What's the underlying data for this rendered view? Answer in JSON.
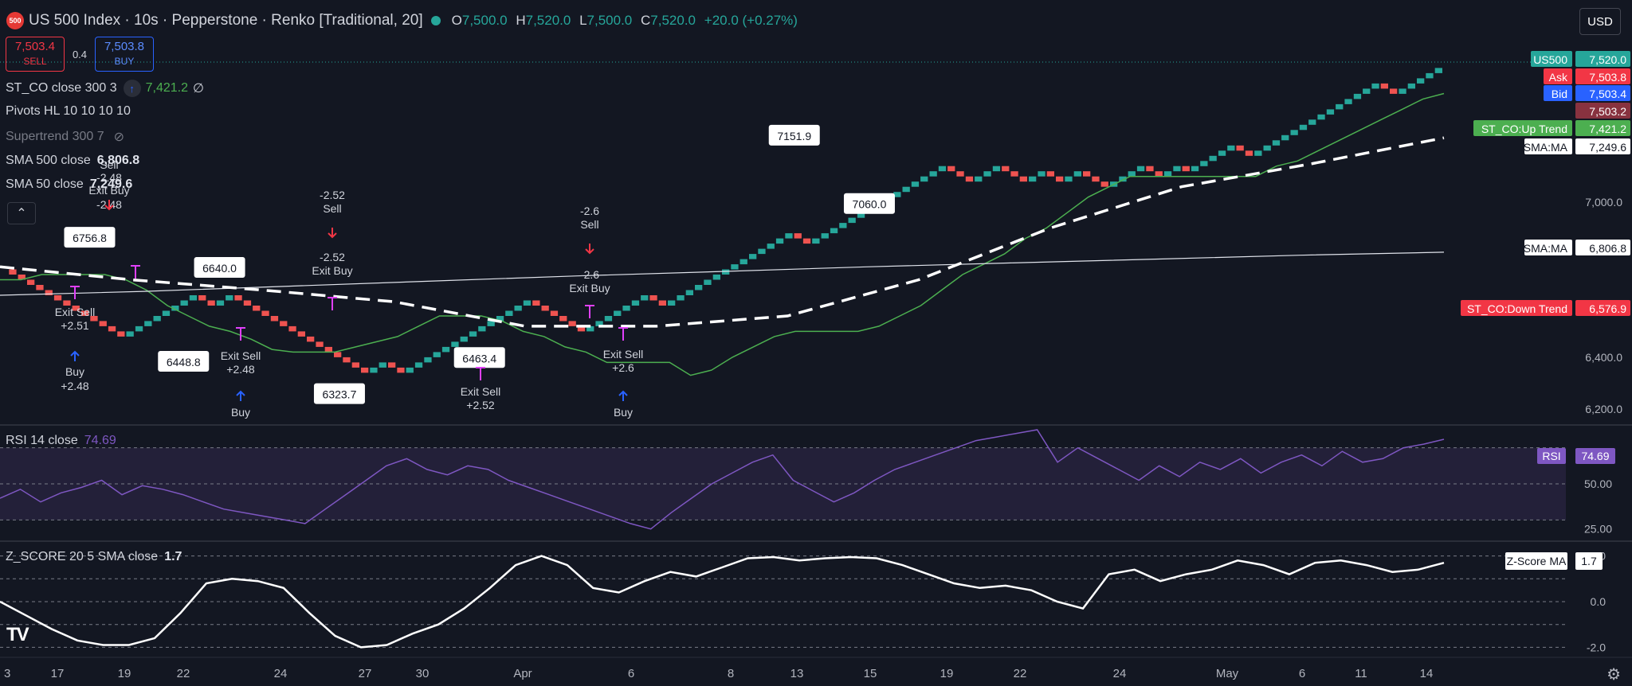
{
  "header": {
    "logo_text": "500",
    "title": "US 500 Index · 10s · Pepperstone · Renko [Traditional, 20]",
    "o_label": "O",
    "o": "7,500.0",
    "h_label": "H",
    "h": "7,520.0",
    "l_label": "L",
    "l": "7,500.0",
    "c_label": "C",
    "c": "7,520.0",
    "change": "+20.0 (+0.27%)"
  },
  "trade": {
    "sell_price": "7,503.4",
    "sell_label": "SELL",
    "spread": "0.4",
    "buy_price": "7,503.8",
    "buy_label": "BUY"
  },
  "currency": "USD",
  "legend": {
    "st_co": "ST_CO close 300 3",
    "st_co_value": "7,421.2",
    "st_co_extra": "∅",
    "pivots": "Pivots HL 10 10 10 10",
    "supertrend": "Supertrend 300 7",
    "sma500": "SMA 500 close",
    "sma500_value": "6,806.8",
    "sma50": "SMA 50 close",
    "sma50_value": "7,249.6",
    "rsi": "RSI 14 close",
    "rsi_value": "74.69",
    "zscore": "Z_SCORE 20 5 SMA close",
    "zscore_value": "1.7"
  },
  "colors": {
    "up": "#26a69a",
    "down": "#ef5350",
    "purple": "#7e57c2",
    "signal": "#e040fb",
    "buy": "#2962ff",
    "sell": "#f23645",
    "bg": "#131722"
  },
  "chart_data": [
    {
      "type": "line",
      "title": "US 500 Index · 10s · Pepperstone · Renko [Traditional, 20]",
      "ylim": [
        6150,
        7660
      ],
      "y_ticks": [
        6200,
        6400,
        7000
      ],
      "y_tick_labels": [
        "6,200.0",
        "6,400.0",
        "7,000.0"
      ],
      "x_tick_labels": [
        "3",
        "17",
        "19",
        "22",
        "24",
        "27",
        "30",
        "Apr",
        "6",
        "8",
        "13",
        "15",
        "19",
        "22",
        "24",
        "May",
        "6",
        "11",
        "14"
      ],
      "series": [
        {
          "name": "SMA 500 close",
          "values": [
            6640,
            6655,
            6675,
            6695,
            6715,
            6732,
            6750,
            6765,
            6780,
            6795,
            6806.8
          ]
        },
        {
          "name": "SMA 50 close",
          "values": [
            6750,
            6700,
            6660,
            6615,
            6520,
            6520,
            6560,
            6700,
            6900,
            7060,
            7150,
            7249.6
          ]
        }
      ],
      "renko_path": [
        6740,
        6720,
        6700,
        6680,
        6660,
        6640,
        6620,
        6600,
        6580,
        6560,
        6540,
        6520,
        6500,
        6480,
        6500,
        6520,
        6540,
        6560,
        6580,
        6600,
        6620,
        6640,
        6620,
        6600,
        6620,
        6640,
        6620,
        6600,
        6580,
        6560,
        6540,
        6520,
        6500,
        6480,
        6460,
        6440,
        6420,
        6400,
        6380,
        6360,
        6340,
        6360,
        6380,
        6360,
        6340,
        6360,
        6380,
        6400,
        6420,
        6440,
        6460,
        6480,
        6500,
        6520,
        6540,
        6560,
        6580,
        6600,
        6620,
        6600,
        6580,
        6560,
        6540,
        6520,
        6500,
        6520,
        6540,
        6560,
        6580,
        6600,
        6620,
        6640,
        6620,
        6600,
        6620,
        6640,
        6660,
        6680,
        6700,
        6720,
        6740,
        6760,
        6780,
        6800,
        6820,
        6840,
        6860,
        6880,
        6860,
        6840,
        6860,
        6880,
        6900,
        6920,
        6940,
        6960,
        6980,
        7000,
        7020,
        7040,
        7060,
        7080,
        7100,
        7120,
        7140,
        7120,
        7100,
        7080,
        7100,
        7120,
        7140,
        7120,
        7100,
        7080,
        7100,
        7120,
        7100,
        7080,
        7100,
        7120,
        7100,
        7080,
        7060,
        7080,
        7100,
        7120,
        7140,
        7120,
        7100,
        7120,
        7140,
        7120,
        7140,
        7160,
        7180,
        7200,
        7220,
        7200,
        7180,
        7200,
        7220,
        7240,
        7260,
        7280,
        7300,
        7320,
        7340,
        7360,
        7380,
        7400,
        7420,
        7440,
        7460,
        7440,
        7420,
        7440,
        7460,
        7480,
        7500,
        7520
      ],
      "supertrend_path": [
        6700,
        6700,
        6720,
        6720,
        6720,
        6720,
        6700,
        6660,
        6600,
        6560,
        6520,
        6500,
        6470,
        6430,
        6420,
        6420,
        6420,
        6440,
        6460,
        6480,
        6520,
        6560,
        6560,
        6560,
        6540,
        6500,
        6480,
        6440,
        6420,
        6380,
        6380,
        6380,
        6380,
        6330,
        6350,
        6400,
        6440,
        6480,
        6500,
        6500,
        6500,
        6500,
        6520,
        6560,
        6600,
        6660,
        6720,
        6760,
        6800,
        6860,
        6900,
        6960,
        7020,
        7060,
        7100,
        7100,
        7100,
        7100,
        7100,
        7100,
        7100,
        7140,
        7160,
        7200,
        7240,
        7280,
        7320,
        7360,
        7400,
        7421.2
      ],
      "pivots": [
        "6756.8",
        "6640.0",
        "6448.8",
        "6323.7",
        "6463.4",
        "7151.9",
        "7060.0"
      ],
      "signals": [
        "Sell",
        "-2.48",
        "Exit Buy",
        "-2.48",
        "Exit Sell",
        "+2.51",
        "Buy",
        "+2.48",
        "Exit Sell",
        "+2.48",
        "Buy",
        "-2.52",
        "Sell",
        "-2.52",
        "Exit Buy",
        "Exit Sell",
        "+2.52",
        "-2.6",
        "Sell",
        "-2.6",
        "Exit Buy",
        "Exit Sell",
        "+2.6",
        "Buy"
      ],
      "price_labels": [
        {
          "name": "US500",
          "value": "7,520.0",
          "color": "#26a69a"
        },
        {
          "name": "Ask",
          "value": "7,503.8",
          "color": "#f23645"
        },
        {
          "name": "Bid",
          "value": "7,503.4",
          "color": "#2962ff"
        },
        {
          "name": "",
          "value": "7,503.2",
          "color": "#88323f"
        },
        {
          "name": "ST_CO:Up Trend",
          "value": "7,421.2",
          "color": "#4caf50"
        },
        {
          "name": "SMA:MA",
          "value": "7,249.6",
          "color": "#ffffff"
        },
        {
          "name": "SMA:MA",
          "value": "6,806.8",
          "color": "#ffffff"
        },
        {
          "name": "ST_CO:Down Trend",
          "value": "6,576.9",
          "color": "#f23645"
        }
      ]
    },
    {
      "type": "line",
      "title": "RSI 14 close",
      "ylim": [
        20,
        80
      ],
      "y_ticks": [
        25,
        50
      ],
      "y_tick_labels": [
        "25.00",
        "50.00"
      ],
      "series": [
        {
          "name": "RSI",
          "values": [
            42,
            47,
            40,
            45,
            48,
            52,
            44,
            49,
            47,
            44,
            40,
            36,
            34,
            32,
            30,
            28,
            36,
            44,
            52,
            60,
            64,
            58,
            55,
            60,
            58,
            52,
            48,
            44,
            40,
            36,
            32,
            28,
            25,
            34,
            42,
            50,
            56,
            62,
            66,
            52,
            46,
            40,
            45,
            52,
            58,
            62,
            66,
            70,
            74,
            76,
            78,
            80,
            62,
            70,
            64,
            58,
            52,
            60,
            54,
            62,
            58,
            64,
            56,
            62,
            66,
            60,
            68,
            62,
            64,
            70,
            72,
            74.69
          ]
        }
      ],
      "price_labels": [
        {
          "name": "RSI",
          "value": "74.69",
          "color": "#7e57c2"
        }
      ]
    },
    {
      "type": "line",
      "title": "Z_SCORE 20 5 SMA close",
      "ylim": [
        -2.3,
        2.3
      ],
      "y_ticks": [
        2.0,
        0.0,
        -2.0
      ],
      "y_tick_labels": [
        "2.0",
        "0.0",
        "-2.0"
      ],
      "series": [
        {
          "name": "Z-Score MA",
          "values": [
            0.0,
            -0.6,
            -1.2,
            -1.7,
            -1.9,
            -1.9,
            -1.6,
            -0.5,
            0.8,
            1.0,
            0.9,
            0.6,
            -0.5,
            -1.5,
            -2.0,
            -1.9,
            -1.4,
            -1.0,
            -0.3,
            0.6,
            1.6,
            2.0,
            1.6,
            0.6,
            0.4,
            0.9,
            1.3,
            1.1,
            1.5,
            1.9,
            1.95,
            1.8,
            1.9,
            1.95,
            1.9,
            1.6,
            1.2,
            0.8,
            0.6,
            0.7,
            0.5,
            0.0,
            -0.3,
            1.2,
            1.4,
            0.9,
            1.2,
            1.4,
            1.8,
            1.6,
            1.2,
            1.7,
            1.8,
            1.6,
            1.3,
            1.4,
            1.7
          ]
        }
      ],
      "price_labels": [
        {
          "name": "Z-Score MA",
          "value": "1.7",
          "color": "#ffffff"
        }
      ]
    }
  ]
}
